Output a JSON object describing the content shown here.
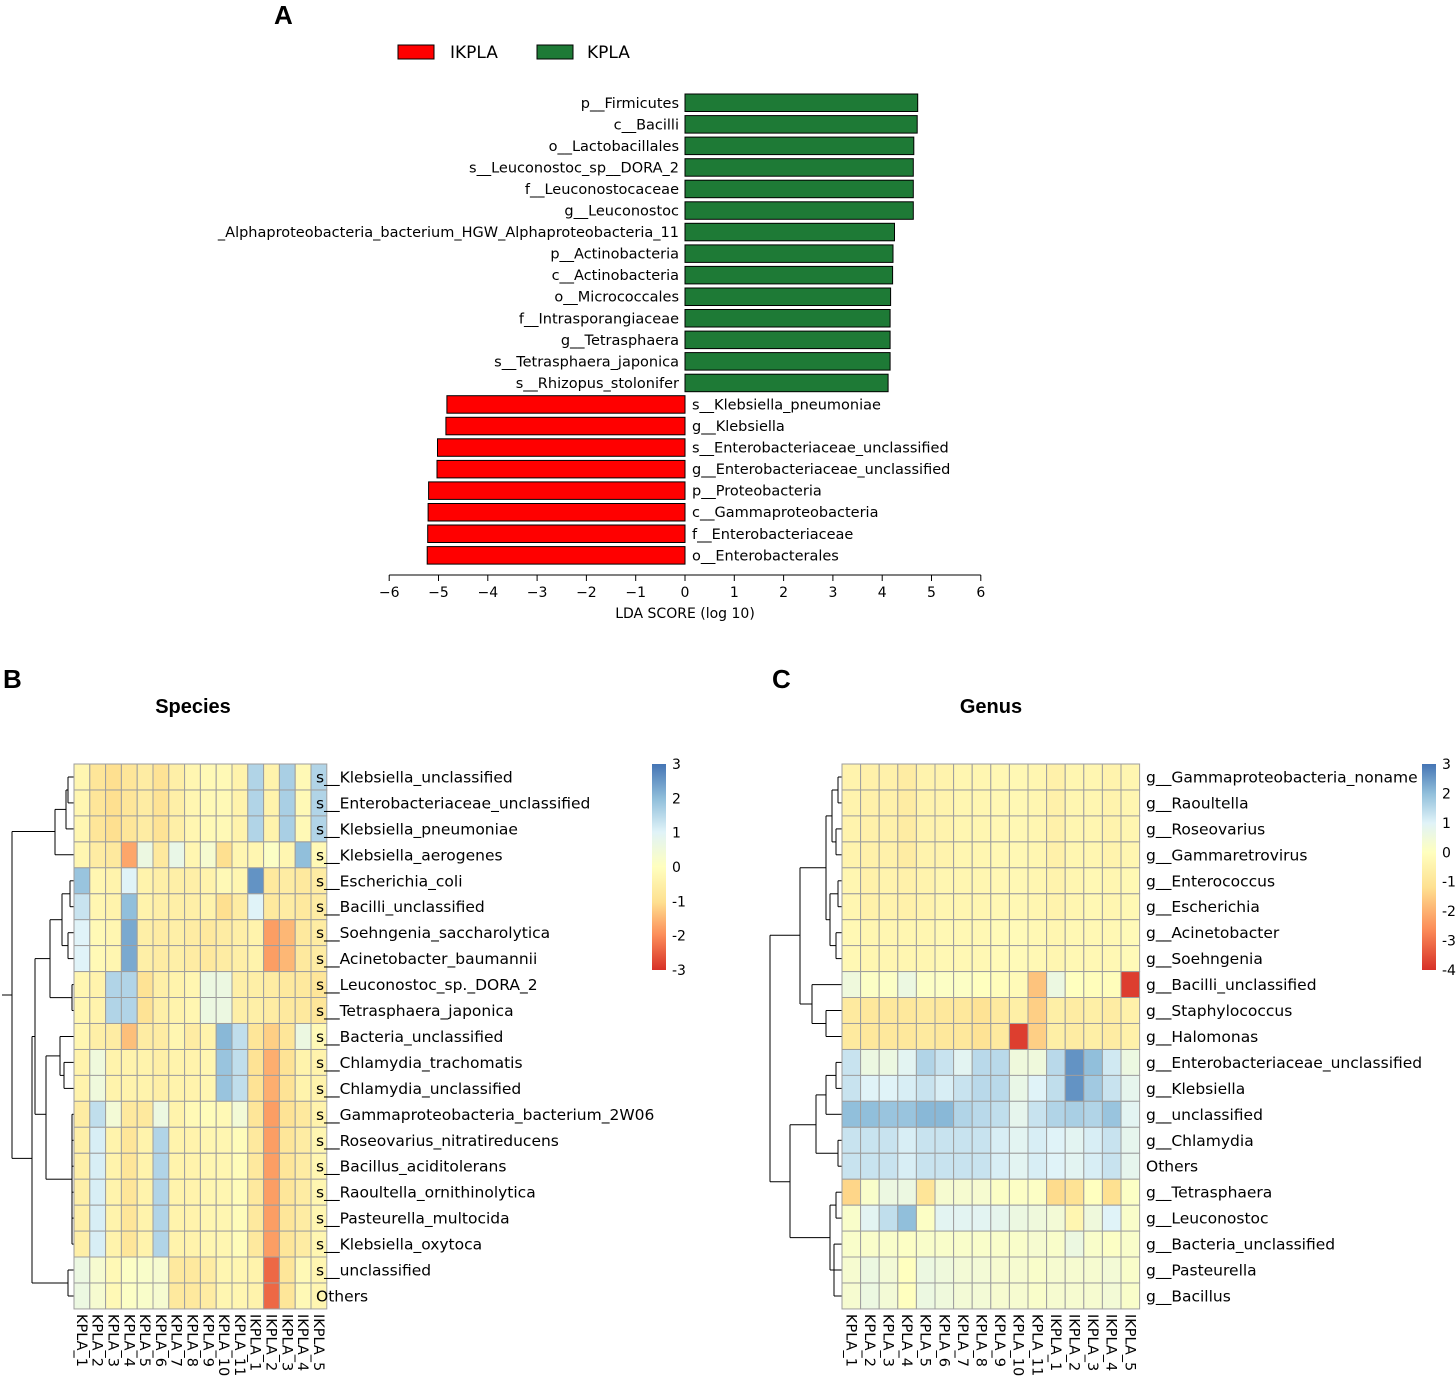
{
  "panels": {
    "a": "A",
    "b": "B",
    "c": "C"
  },
  "chart_data": [
    {
      "type": "bar",
      "orientation": "horizontal",
      "panel": "A",
      "title": "",
      "xlabel": "LDA SCORE (log 10)",
      "ylabel": "",
      "xlim": [
        -6,
        6
      ],
      "xticks": [
        "−6",
        "−5",
        "−4",
        "−3",
        "−2",
        "−1",
        "0",
        "1",
        "2",
        "3",
        "4",
        "5",
        "6"
      ],
      "xtick_values": [
        -6,
        -5,
        -4,
        -3,
        -2,
        -1,
        0,
        1,
        2,
        3,
        4,
        5,
        6
      ],
      "legend": [
        {
          "name": "IKPLA",
          "color": "#ff0000"
        },
        {
          "name": "KPLA",
          "color": "#1e7a36"
        }
      ],
      "groups": {
        "IKPLA": "#ff0000",
        "KPLA": "#1e7a36"
      },
      "categories": [
        "p__Firmicutes",
        "c__Bacilli",
        "o__Lactobacillales",
        "s__Leuconostoc_sp__DORA_2",
        "f__Leuconostocaceae",
        "g__Leuconostoc",
        "_Alphaproteobacteria_bacterium_HGW_Alphaproteobacteria_11",
        "p__Actinobacteria",
        "c__Actinobacteria",
        "o__Micrococcales",
        "f__Intrasporangiaceae",
        "g__Tetrasphaera",
        "s__Tetrasphaera_japonica",
        "s__Rhizopus_stolonifer",
        "s__Klebsiella_pneumoniae",
        "g__Klebsiella",
        "s__Enterobacteriaceae_unclassified",
        "g__Enterobacteriaceae_unclassified",
        "p__Proteobacteria",
        "c__Gammaproteobacteria",
        "f__Enterobacteriaceae",
        "o__Enterobacterales"
      ],
      "values": [
        4.72,
        4.71,
        4.64,
        4.63,
        4.63,
        4.63,
        4.25,
        4.22,
        4.21,
        4.17,
        4.16,
        4.16,
        4.16,
        4.12,
        -4.83,
        -4.85,
        -5.02,
        -5.03,
        -5.2,
        -5.21,
        -5.22,
        -5.23
      ],
      "group_of_bar": [
        "KPLA",
        "KPLA",
        "KPLA",
        "KPLA",
        "KPLA",
        "KPLA",
        "KPLA",
        "KPLA",
        "KPLA",
        "KPLA",
        "KPLA",
        "KPLA",
        "KPLA",
        "KPLA",
        "IKPLA",
        "IKPLA",
        "IKPLA",
        "IKPLA",
        "IKPLA",
        "IKPLA",
        "IKPLA",
        "IKPLA"
      ]
    },
    {
      "type": "heatmap",
      "panel": "B",
      "title": "Species",
      "columns": [
        "KPLA_1",
        "KPLA_2",
        "KPLA_3",
        "KPLA_4",
        "KPLA_5",
        "KPLA_6",
        "KPLA_7",
        "KPLA_8",
        "KPLA_9",
        "KPLA_10",
        "KPLA_11",
        "IKPLA_1",
        "IKPLA_2",
        "IKPLA_3",
        "IKPLA_4",
        "IKPLA_5"
      ],
      "rows": [
        "s__Klebsiella_unclassified",
        "s__Enterobacteriaceae_unclassified",
        "s__Klebsiella_pneumoniae",
        "s__Klebsiella_aerogenes",
        "s__Escherichia_coli",
        "s__Bacilli_unclassified",
        "s__Soehngenia_saccharolytica",
        "s__Acinetobacter_baumannii",
        "s__Leuconostoc_sp._DORA_2",
        "s__Tetrasphaera_japonica",
        "s__Bacteria_unclassified",
        "s__Chlamydia_trachomatis",
        "s__Chlamydia_unclassified",
        "s__Gammaproteobacteria_bacterium_2W06",
        "s__Roseovarius_nitratireducens",
        "s__Bacillus_aciditolerans",
        "s__Raoultella_ornithinolytica",
        "s__Pasteurella_multocida",
        "s__Klebsiella_oxytoca",
        "s__unclassified",
        "Others"
      ],
      "colorbar": {
        "min": -3,
        "max": 3,
        "ticks": [
          "3",
          "2",
          "1",
          "0",
          "-1",
          "-2",
          "-3"
        ],
        "tick_values": [
          3,
          2,
          1,
          0,
          -1,
          -2,
          -3
        ]
      },
      "values": [
        [
          -0.3,
          -0.8,
          -1.0,
          -0.8,
          -0.6,
          -0.9,
          -0.5,
          -0.3,
          -0.2,
          -0.2,
          -0.4,
          1.6,
          -0.4,
          1.7,
          -0.2,
          1.6
        ],
        [
          -0.3,
          -0.8,
          -1.0,
          -0.8,
          -0.6,
          -0.9,
          -0.5,
          -0.3,
          -0.2,
          -0.2,
          -0.4,
          1.6,
          -0.4,
          1.7,
          -0.2,
          1.6
        ],
        [
          -0.3,
          -0.8,
          -1.0,
          -0.8,
          -0.6,
          -0.9,
          -0.5,
          -0.3,
          -0.2,
          -0.2,
          -0.4,
          1.6,
          -0.4,
          1.7,
          -0.2,
          1.6
        ],
        [
          -0.3,
          -0.6,
          -0.7,
          -1.7,
          0.6,
          -0.7,
          0.7,
          -0.3,
          0.3,
          -1.0,
          -0.3,
          -0.3,
          0.1,
          -0.3,
          2.0,
          -0.2
        ],
        [
          1.9,
          -0.3,
          -0.4,
          1.0,
          -0.4,
          -0.5,
          -0.5,
          -0.5,
          -0.4,
          -0.2,
          -0.3,
          2.6,
          -0.7,
          -0.6,
          -0.7,
          -0.6
        ],
        [
          1.3,
          -0.3,
          -0.4,
          2.0,
          -0.4,
          -0.5,
          -0.5,
          -0.5,
          -0.4,
          -1.0,
          -0.6,
          1.0,
          -0.7,
          -0.6,
          -0.7,
          -0.6
        ],
        [
          1.0,
          -0.2,
          -0.3,
          2.3,
          -0.5,
          -0.6,
          -0.5,
          -0.6,
          -0.7,
          -0.6,
          -0.5,
          -0.4,
          -1.8,
          -1.5,
          -0.7,
          -0.6
        ],
        [
          1.0,
          -0.2,
          -0.3,
          2.3,
          -0.5,
          -0.6,
          -0.5,
          -0.6,
          -0.7,
          -0.6,
          -0.5,
          -0.4,
          -1.8,
          -1.5,
          -0.7,
          -0.6
        ],
        [
          -0.3,
          -0.4,
          1.6,
          1.6,
          -0.9,
          -0.5,
          -0.4,
          -0.3,
          0.6,
          0.6,
          -0.5,
          -0.5,
          -0.6,
          -0.7,
          -0.7,
          -0.8
        ],
        [
          -0.3,
          -0.4,
          1.6,
          1.6,
          -0.9,
          -0.5,
          -0.4,
          -0.3,
          0.6,
          0.6,
          -0.5,
          -0.5,
          -0.6,
          -0.7,
          -0.7,
          -0.8
        ],
        [
          -0.3,
          -0.5,
          -0.6,
          -1.4,
          -0.6,
          -0.6,
          -0.3,
          -0.6,
          -0.4,
          2.1,
          1.4,
          -0.8,
          -1.2,
          -0.8,
          0.6,
          -0.2
        ],
        [
          -0.4,
          0.5,
          -0.4,
          -0.4,
          -0.4,
          -0.5,
          -0.4,
          -0.4,
          -0.3,
          1.9,
          1.4,
          -0.9,
          -1.6,
          -0.9,
          -0.4,
          -0.4
        ],
        [
          -0.4,
          0.5,
          -0.4,
          -0.4,
          -0.4,
          -0.5,
          -0.4,
          -0.4,
          -0.3,
          1.9,
          1.4,
          -0.9,
          -1.6,
          -0.9,
          -0.4,
          -0.4
        ],
        [
          -0.6,
          1.4,
          0.4,
          -0.7,
          -0.7,
          0.6,
          -0.4,
          -0.2,
          -0.1,
          -0.2,
          0.4,
          -0.8,
          -1.8,
          -0.9,
          -0.7,
          -0.4
        ],
        [
          -0.5,
          1.1,
          -0.4,
          -0.8,
          -0.4,
          1.6,
          -0.4,
          -0.4,
          -0.3,
          -0.3,
          -0.1,
          -0.7,
          -1.8,
          -0.8,
          -0.6,
          -0.3
        ],
        [
          -0.5,
          1.1,
          -0.4,
          -0.8,
          -0.4,
          1.6,
          -0.4,
          -0.4,
          -0.3,
          -0.3,
          -0.1,
          -0.7,
          -1.8,
          -0.8,
          -0.6,
          -0.3
        ],
        [
          -0.5,
          1.1,
          -0.4,
          -0.8,
          -0.4,
          1.6,
          -0.4,
          -0.4,
          -0.3,
          -0.3,
          -0.1,
          -0.7,
          -1.8,
          -0.8,
          -0.6,
          -0.3
        ],
        [
          -0.5,
          1.1,
          -0.4,
          -0.8,
          -0.4,
          1.6,
          -0.4,
          -0.4,
          -0.3,
          -0.3,
          -0.1,
          -0.7,
          -1.8,
          -0.8,
          -0.6,
          -0.3
        ],
        [
          -0.5,
          1.1,
          -0.4,
          -0.8,
          -0.4,
          1.6,
          -0.4,
          -0.4,
          -0.3,
          -0.3,
          -0.1,
          -0.7,
          -1.8,
          -0.8,
          -0.6,
          -0.3
        ],
        [
          0.6,
          0.3,
          -0.2,
          0.1,
          0.2,
          0.3,
          -0.7,
          -0.7,
          -0.6,
          -0.3,
          -0.3,
          -0.4,
          -2.4,
          -0.8,
          -0.2,
          -0.3
        ],
        [
          0.6,
          0.3,
          -0.2,
          0.1,
          0.2,
          0.3,
          -0.7,
          -0.7,
          -0.6,
          -0.3,
          -0.3,
          -0.4,
          -2.4,
          -0.8,
          -0.2,
          -0.3
        ]
      ]
    },
    {
      "type": "heatmap",
      "panel": "C",
      "title": "Genus",
      "columns": [
        "KPLA_1",
        "KPLA_2",
        "KPLA_3",
        "KPLA_4",
        "KPLA_5",
        "KPLA_6",
        "KPLA_7",
        "KPLA_8",
        "KPLA_9",
        "KPLA_10",
        "KPLA_11",
        "IKPLA_1",
        "IKPLA_2",
        "IKPLA_3",
        "IKPLA_4",
        "IKPLA_5"
      ],
      "rows": [
        "g__Gammaproteobacteria_noname",
        "g__Raoultella",
        "g__Roseovarius",
        "g__Gammaretrovirus",
        "g__Enterococcus",
        "g__Escherichia",
        "g__Acinetobacter",
        "g__Soehngenia",
        "g__Bacilli_unclassified",
        "g__Staphylococcus",
        "g__Halomonas",
        "g__Enterobacteriaceae_unclassified",
        "g__Klebsiella",
        "g__unclassified",
        "g__Chlamydia",
        "Others",
        "g__Tetrasphaera",
        "g__Leuconostoc",
        "g__Bacteria_unclassified",
        "g__Pasteurella",
        "g__Bacillus"
      ],
      "colorbar": {
        "min": -4,
        "max": 3,
        "ticks": [
          "3",
          "2",
          "1",
          "0",
          "-1",
          "-2",
          "-3",
          "-4"
        ],
        "tick_values": [
          3,
          2,
          1,
          0,
          -1,
          -2,
          -3,
          -4
        ]
      },
      "values": [
        [
          -0.5,
          -0.6,
          -0.6,
          -0.8,
          -0.5,
          -0.5,
          -0.4,
          -0.4,
          -0.3,
          -0.3,
          -0.4,
          -0.6,
          -0.4,
          -0.4,
          -0.5,
          -0.4
        ],
        [
          -0.5,
          -0.6,
          -0.6,
          -0.8,
          -0.5,
          -0.5,
          -0.4,
          -0.4,
          -0.3,
          -0.3,
          -0.4,
          -0.6,
          -0.4,
          -0.4,
          -0.5,
          -0.4
        ],
        [
          -0.5,
          -0.6,
          -0.6,
          -0.8,
          -0.5,
          -0.5,
          -0.4,
          -0.4,
          -0.3,
          -0.3,
          -0.4,
          -0.6,
          -0.4,
          -0.4,
          -0.5,
          -0.4
        ],
        [
          -0.5,
          -0.6,
          -0.6,
          -0.8,
          -0.5,
          -0.5,
          -0.4,
          -0.4,
          -0.3,
          -0.3,
          -0.4,
          -0.6,
          -0.4,
          -0.4,
          -0.5,
          -0.4
        ],
        [
          -0.4,
          -0.6,
          -0.5,
          -0.6,
          -0.5,
          -0.4,
          -0.4,
          -0.4,
          -0.3,
          -0.3,
          -0.4,
          -0.5,
          -0.4,
          -0.3,
          -0.4,
          -0.3
        ],
        [
          -0.4,
          -0.6,
          -0.5,
          -0.6,
          -0.5,
          -0.4,
          -0.4,
          -0.4,
          -0.3,
          -0.3,
          -0.4,
          -0.5,
          -0.4,
          -0.3,
          -0.4,
          -0.3
        ],
        [
          -0.3,
          -0.4,
          -0.4,
          -0.4,
          -0.4,
          -0.3,
          -0.3,
          -0.3,
          -0.2,
          -0.2,
          -0.3,
          -0.4,
          -0.3,
          -0.3,
          -0.3,
          -0.2
        ],
        [
          -0.3,
          -0.4,
          -0.4,
          -0.4,
          -0.4,
          -0.3,
          -0.3,
          -0.3,
          -0.2,
          -0.2,
          -0.3,
          -0.4,
          -0.3,
          -0.3,
          -0.3,
          -0.2
        ],
        [
          0.5,
          0.1,
          0.1,
          0.6,
          0.1,
          0.1,
          0.1,
          0.0,
          -0.1,
          -0.2,
          -1.8,
          0.6,
          0.0,
          -0.1,
          -0.1,
          -3.8
        ],
        [
          -0.9,
          -1.0,
          -1.0,
          -1.0,
          -0.9,
          -1.0,
          -1.0,
          -1.2,
          -0.9,
          -0.7,
          -1.6,
          -0.7,
          -0.8,
          -0.7,
          -0.8,
          -0.6
        ],
        [
          -0.9,
          -1.0,
          -1.0,
          -1.0,
          -0.9,
          -1.0,
          -1.0,
          -1.2,
          -0.9,
          -3.8,
          -1.6,
          -0.7,
          -0.8,
          -0.7,
          -0.8,
          -0.6
        ],
        [
          1.3,
          0.6,
          0.6,
          0.9,
          1.6,
          1.3,
          0.9,
          1.5,
          1.5,
          0.5,
          0.5,
          1.5,
          2.6,
          2.0,
          1.2,
          0.6
        ],
        [
          1.3,
          1.0,
          1.0,
          1.1,
          1.3,
          1.1,
          1.3,
          1.5,
          1.5,
          0.7,
          1.0,
          1.4,
          2.6,
          1.8,
          1.3,
          0.8
        ],
        [
          2.0,
          2.0,
          1.9,
          1.9,
          2.1,
          2.1,
          1.6,
          1.5,
          1.4,
          0.8,
          1.3,
          1.6,
          1.7,
          1.6,
          1.9,
          0.9
        ],
        [
          1.3,
          1.3,
          1.3,
          1.1,
          1.3,
          1.3,
          1.3,
          1.3,
          1.1,
          0.9,
          1.1,
          1.0,
          0.9,
          1.1,
          1.3,
          0.8
        ],
        [
          1.3,
          1.3,
          1.3,
          1.1,
          1.3,
          1.3,
          1.3,
          1.3,
          1.1,
          0.9,
          1.1,
          1.0,
          0.9,
          1.1,
          1.3,
          0.8
        ],
        [
          -1.5,
          0.2,
          0.6,
          0.6,
          -1.1,
          0.3,
          0.3,
          0.3,
          0.1,
          0.1,
          0.1,
          -1.4,
          -1.2,
          0.0,
          -1.3,
          0.1
        ],
        [
          0.2,
          0.9,
          1.4,
          2.0,
          0.1,
          0.9,
          0.9,
          0.9,
          0.8,
          0.6,
          0.5,
          0.4,
          -0.4,
          0.5,
          1.0,
          0.2
        ],
        [
          0.2,
          0.2,
          0.2,
          0.1,
          0.2,
          0.2,
          0.2,
          0.2,
          0.2,
          0.2,
          0.3,
          0.2,
          0.6,
          0.2,
          0.1,
          0.2
        ],
        [
          0.3,
          0.6,
          0.4,
          0.0,
          0.6,
          0.5,
          0.4,
          0.4,
          0.3,
          0.3,
          0.2,
          0.3,
          0.3,
          0.3,
          0.4,
          0.2
        ],
        [
          0.3,
          0.6,
          0.4,
          0.0,
          0.6,
          0.5,
          0.4,
          0.4,
          0.3,
          0.3,
          0.2,
          0.3,
          0.3,
          0.3,
          0.4,
          0.2
        ]
      ]
    }
  ]
}
